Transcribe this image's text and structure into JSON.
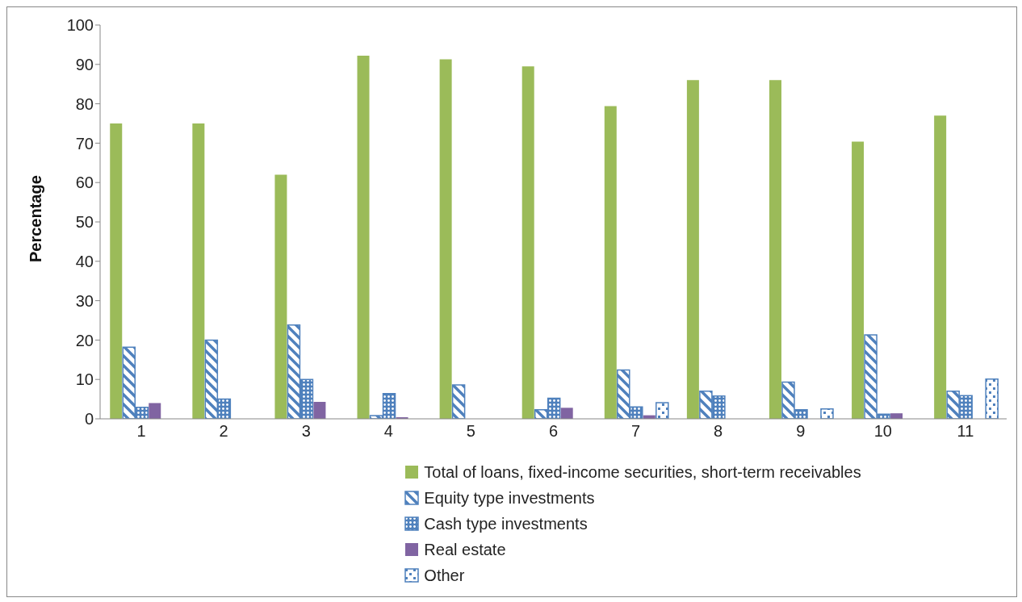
{
  "chart_data": {
    "type": "bar",
    "ylabel": "Percentage",
    "categories": [
      "1",
      "2",
      "3",
      "4",
      "5",
      "6",
      "7",
      "8",
      "9",
      "10",
      "11"
    ],
    "series": [
      {
        "name": "Total of loans, fixed-income securities, short-term receivables",
        "color": "#9bbb59",
        "values": [
          75,
          75,
          62,
          92.2,
          91.3,
          89.5,
          79.4,
          86,
          86,
          70.4,
          77
        ]
      },
      {
        "name": "Equity type investments",
        "color": "#4f81bd",
        "values": [
          18.2,
          20,
          23.8,
          0.8,
          8.6,
          2.3,
          12.4,
          7,
          9.3,
          21.3,
          7
        ]
      },
      {
        "name": "Cash type investments",
        "color": "#4f81bd",
        "values": [
          2.9,
          5,
          10,
          6.4,
          0,
          5.2,
          3,
          5.8,
          2.3,
          1.2,
          5.9
        ]
      },
      {
        "name": "Real estate",
        "color": "#8064a2",
        "values": [
          4,
          0,
          4.3,
          0.4,
          0,
          2.8,
          0.9,
          0,
          0,
          1.4,
          0
        ]
      },
      {
        "name": "Other",
        "color": "#4f81bd",
        "values": [
          0,
          0,
          0,
          0,
          0,
          0,
          4.1,
          0,
          2.5,
          0,
          10.1
        ]
      }
    ],
    "ylim": [
      0,
      100
    ],
    "yticks": [
      0,
      10,
      20,
      30,
      40,
      50,
      60,
      70,
      80,
      90,
      100
    ],
    "grid": false,
    "legend": "bottom"
  }
}
